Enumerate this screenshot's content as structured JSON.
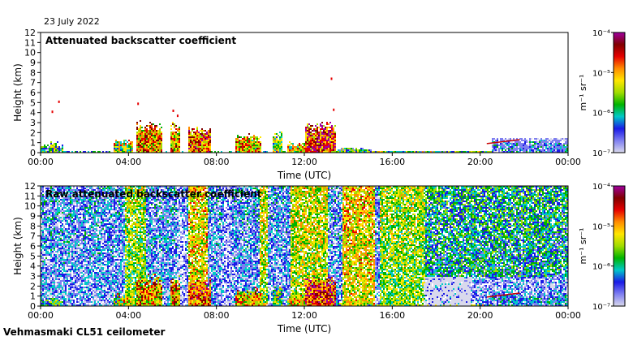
{
  "date": "23 July 2022",
  "footer": "Vehmasmaki CL51 ceilometer",
  "colors": {
    "scale": [
      "#ffffff",
      "#d9d9ec",
      "#7f7ff0",
      "#1a1ae6",
      "#00c8c8",
      "#00b400",
      "#a0dc00",
      "#ffe600",
      "#ff8c00",
      "#e60000",
      "#800000",
      "#a000a0"
    ]
  },
  "chart_data": [
    {
      "type": "heatmap",
      "title": "Attenuated backscatter coefficient",
      "xlabel": "Time (UTC)",
      "ylabel": "Height (km)",
      "x_ticks": [
        "00:00",
        "04:00",
        "08:00",
        "12:00",
        "16:00",
        "20:00",
        "00:00"
      ],
      "xlim_hours": [
        0,
        24
      ],
      "y_ticks": [
        0,
        1,
        2,
        3,
        4,
        5,
        6,
        7,
        8,
        9,
        10,
        11,
        12
      ],
      "ylim_km": [
        0,
        12
      ],
      "colorbar": {
        "unit_label": "m⁻¹ sr⁻¹",
        "ticks": [
          "10⁻⁷",
          "10⁻⁶",
          "10⁻⁵",
          "10⁻⁴"
        ],
        "range_exp": [
          -7,
          -4
        ]
      }
    },
    {
      "type": "heatmap",
      "title": "Raw attenuated backscatter coefficient",
      "xlabel": "Time (UTC)",
      "ylabel": "Height (km)",
      "x_ticks": [
        "00:00",
        "04:00",
        "08:00",
        "12:00",
        "16:00",
        "20:00",
        "00:00"
      ],
      "xlim_hours": [
        0,
        24
      ],
      "y_ticks": [
        0,
        1,
        2,
        3,
        4,
        5,
        6,
        7,
        8,
        9,
        10,
        11,
        12
      ],
      "ylim_km": [
        0,
        12
      ],
      "colorbar": {
        "unit_label": "m⁻¹ sr⁻¹",
        "ticks": [
          "10⁻⁷",
          "10⁻⁶",
          "10⁻⁵",
          "10⁻⁴"
        ],
        "range_exp": [
          -7,
          -4
        ]
      }
    }
  ]
}
